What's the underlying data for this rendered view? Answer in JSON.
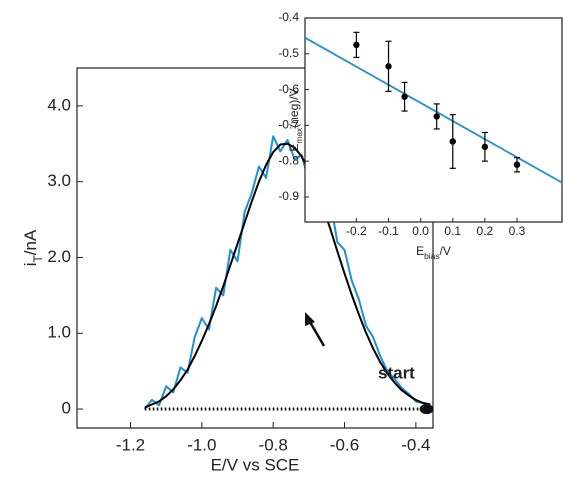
{
  "chart_data": [
    {
      "type": "line",
      "xlabel": "E/V vs SCE",
      "ylabel": {
        "main": "i",
        "sub": "T",
        "rest": "/nA"
      },
      "annotation": "start",
      "xlim": [
        -1.35,
        -0.352
      ],
      "ylim": [
        -0.25,
        4.5
      ],
      "xticks": [
        -1.2,
        {
          "value": -1,
          "label": "-1.0"
        },
        -0.8,
        -0.6,
        -0.4
      ],
      "yticks": [
        0,
        {
          "value": 1,
          "label": "1.0"
        },
        {
          "value": 2,
          "label": "2.0"
        },
        {
          "value": 3,
          "label": "3.0"
        },
        {
          "value": 4,
          "label": "4.0"
        }
      ],
      "series": [
        {
          "color": "#1e90d8",
          "style": "solid",
          "x": [
            -1.16,
            -1.14,
            -1.12,
            -1.1,
            -1.08,
            -1.06,
            -1.04,
            -1.02,
            -1.0,
            -0.98,
            -0.96,
            -0.94,
            -0.92,
            -0.9,
            -0.88,
            -0.86,
            -0.84,
            -0.82,
            -0.8,
            -0.78,
            -0.76,
            -0.74,
            -0.72,
            -0.7,
            -0.68,
            -0.66,
            -0.64,
            -0.62,
            -0.6,
            -0.58,
            -0.56,
            -0.54,
            -0.52,
            -0.5,
            -0.48,
            -0.46,
            -0.44,
            -0.42,
            -0.4,
            -0.38,
            -0.36
          ],
          "values": [
            0.0,
            0.12,
            0.05,
            0.3,
            0.22,
            0.55,
            0.48,
            0.95,
            1.2,
            1.05,
            1.6,
            1.5,
            2.1,
            1.95,
            2.6,
            2.85,
            3.2,
            3.05,
            3.6,
            3.4,
            3.55,
            3.3,
            3.35,
            3.0,
            3.1,
            2.6,
            2.75,
            2.2,
            2.1,
            1.7,
            1.45,
            1.1,
            0.95,
            0.7,
            0.5,
            0.4,
            0.28,
            0.2,
            0.1,
            0.08,
            0.06
          ]
        },
        {
          "color": "#000000",
          "style": "solid",
          "x": [
            -1.16,
            -1.14,
            -1.12,
            -1.1,
            -1.08,
            -1.06,
            -1.04,
            -1.02,
            -1.0,
            -0.98,
            -0.96,
            -0.94,
            -0.92,
            -0.9,
            -0.88,
            -0.86,
            -0.84,
            -0.82,
            -0.8,
            -0.78,
            -0.76,
            -0.74,
            -0.72,
            -0.7,
            -0.68,
            -0.66,
            -0.64,
            -0.62,
            -0.6,
            -0.58,
            -0.56,
            -0.54,
            -0.52,
            -0.5,
            -0.48,
            -0.46,
            -0.44,
            -0.42,
            -0.4,
            -0.38,
            -0.36
          ],
          "values": [
            0.02,
            0.06,
            0.1,
            0.17,
            0.26,
            0.38,
            0.52,
            0.7,
            0.9,
            1.12,
            1.36,
            1.62,
            1.9,
            2.18,
            2.46,
            2.74,
            3.0,
            3.22,
            3.39,
            3.49,
            3.5,
            3.45,
            3.33,
            3.15,
            2.92,
            2.66,
            2.38,
            2.08,
            1.79,
            1.51,
            1.25,
            1.01,
            0.8,
            0.62,
            0.47,
            0.35,
            0.25,
            0.18,
            0.12,
            0.08,
            0.06
          ]
        },
        {
          "color": "#000000",
          "style": "dotted",
          "x": [
            -1.16,
            -0.37
          ],
          "values": [
            0,
            0
          ]
        }
      ]
    },
    {
      "type": "scatter",
      "xlabel": {
        "main": "E",
        "sub": "bias",
        "rest": "/V"
      },
      "ylabel": {
        "main": "E",
        "sub": "max",
        "rest": "(neg)/V"
      },
      "xlim": [
        -0.36,
        0.44
      ],
      "ylim": [
        -0.97,
        -0.4
      ],
      "xticks": [
        -0.2,
        -0.1,
        {
          "value": 0,
          "label": "0.0"
        },
        0.1,
        0.2,
        0.3
      ],
      "yticks": [
        -0.4,
        -0.5,
        -0.6,
        -0.7,
        -0.8,
        -0.9
      ],
      "points": {
        "color": "#000000",
        "x": [
          -0.2,
          -0.1,
          -0.05,
          0.05,
          0.1,
          0.2,
          0.3
        ],
        "values": [
          -0.475,
          -0.535,
          -0.62,
          -0.675,
          -0.745,
          -0.76,
          -0.81
        ],
        "errors": [
          0.035,
          0.07,
          0.04,
          0.035,
          0.075,
          0.04,
          0.02
        ]
      },
      "fit": {
        "color": "#1e90d8",
        "x": [
          -0.36,
          0.44
        ],
        "values": [
          -0.455,
          -0.86
        ]
      }
    }
  ]
}
